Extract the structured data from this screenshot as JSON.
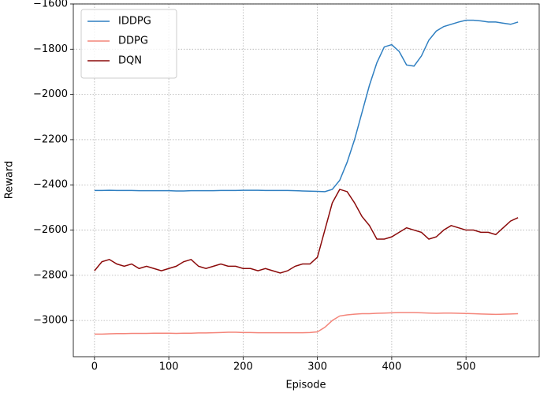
{
  "chart_data": {
    "type": "line",
    "xlabel": "Episode",
    "ylabel": "Reward",
    "x": [
      0,
      10,
      20,
      30,
      40,
      50,
      60,
      70,
      80,
      90,
      100,
      110,
      120,
      130,
      140,
      150,
      160,
      170,
      180,
      190,
      200,
      210,
      220,
      230,
      240,
      250,
      260,
      270,
      280,
      290,
      300,
      310,
      320,
      330,
      340,
      350,
      360,
      370,
      380,
      390,
      400,
      410,
      420,
      430,
      440,
      450,
      460,
      470,
      480,
      490,
      500,
      510,
      520,
      530,
      540,
      550,
      560,
      570
    ],
    "series": [
      {
        "name": "IDDPG",
        "color": "#2f7fc1",
        "values": [
          -2425,
          -2425,
          -2424,
          -2425,
          -2425,
          -2425,
          -2426,
          -2426,
          -2426,
          -2426,
          -2426,
          -2427,
          -2427,
          -2426,
          -2426,
          -2426,
          -2426,
          -2425,
          -2425,
          -2425,
          -2424,
          -2424,
          -2424,
          -2425,
          -2425,
          -2425,
          -2425,
          -2426,
          -2427,
          -2428,
          -2429,
          -2430,
          -2420,
          -2380,
          -2300,
          -2200,
          -2080,
          -1960,
          -1860,
          -1790,
          -1780,
          -1810,
          -1870,
          -1875,
          -1830,
          -1760,
          -1720,
          -1700,
          -1690,
          -1680,
          -1672,
          -1672,
          -1675,
          -1680,
          -1680,
          -1685,
          -1690,
          -1680
        ]
      },
      {
        "name": "DDPG",
        "color": "#f4857a",
        "values": [
          -3060,
          -3060,
          -3059,
          -3058,
          -3058,
          -3057,
          -3057,
          -3057,
          -3056,
          -3056,
          -3056,
          -3057,
          -3056,
          -3056,
          -3055,
          -3055,
          -3054,
          -3053,
          -3052,
          -3052,
          -3053,
          -3053,
          -3054,
          -3054,
          -3054,
          -3054,
          -3054,
          -3054,
          -3054,
          -3053,
          -3050,
          -3030,
          -3000,
          -2980,
          -2975,
          -2972,
          -2970,
          -2970,
          -2968,
          -2967,
          -2966,
          -2965,
          -2965,
          -2965,
          -2966,
          -2967,
          -2968,
          -2967,
          -2967,
          -2968,
          -2969,
          -2970,
          -2971,
          -2972,
          -2973,
          -2972,
          -2971,
          -2970
        ]
      },
      {
        "name": "DQN",
        "color": "#8b0a0a",
        "values": [
          -2780,
          -2740,
          -2730,
          -2750,
          -2760,
          -2750,
          -2770,
          -2760,
          -2770,
          -2780,
          -2770,
          -2760,
          -2740,
          -2730,
          -2760,
          -2770,
          -2760,
          -2750,
          -2760,
          -2760,
          -2770,
          -2770,
          -2780,
          -2770,
          -2780,
          -2790,
          -2780,
          -2760,
          -2750,
          -2750,
          -2720,
          -2600,
          -2480,
          -2420,
          -2430,
          -2480,
          -2540,
          -2580,
          -2640,
          -2640,
          -2630,
          -2610,
          -2590,
          -2600,
          -2610,
          -2640,
          -2630,
          -2600,
          -2580,
          -2590,
          -2600,
          -2600,
          -2610,
          -2610,
          -2620,
          -2590,
          -2560,
          -2545
        ]
      }
    ],
    "xlim": [
      -28.5,
      598.5
    ],
    "ylim": [
      -3160,
      -1600
    ],
    "xticks": [
      0,
      100,
      200,
      300,
      400,
      500
    ],
    "yticks": [
      {
        "value": -3000,
        "label": "−3000"
      },
      {
        "value": -2800,
        "label": "−2800"
      },
      {
        "value": -2600,
        "label": "−2600"
      },
      {
        "value": -2400,
        "label": "−2400"
      },
      {
        "value": -2200,
        "label": "−2200"
      },
      {
        "value": -2000,
        "label": "−2000"
      },
      {
        "value": -1800,
        "label": "−1800"
      },
      {
        "value": -1600,
        "label": "−1600"
      }
    ],
    "grid": true,
    "legend": "upper-left"
  }
}
